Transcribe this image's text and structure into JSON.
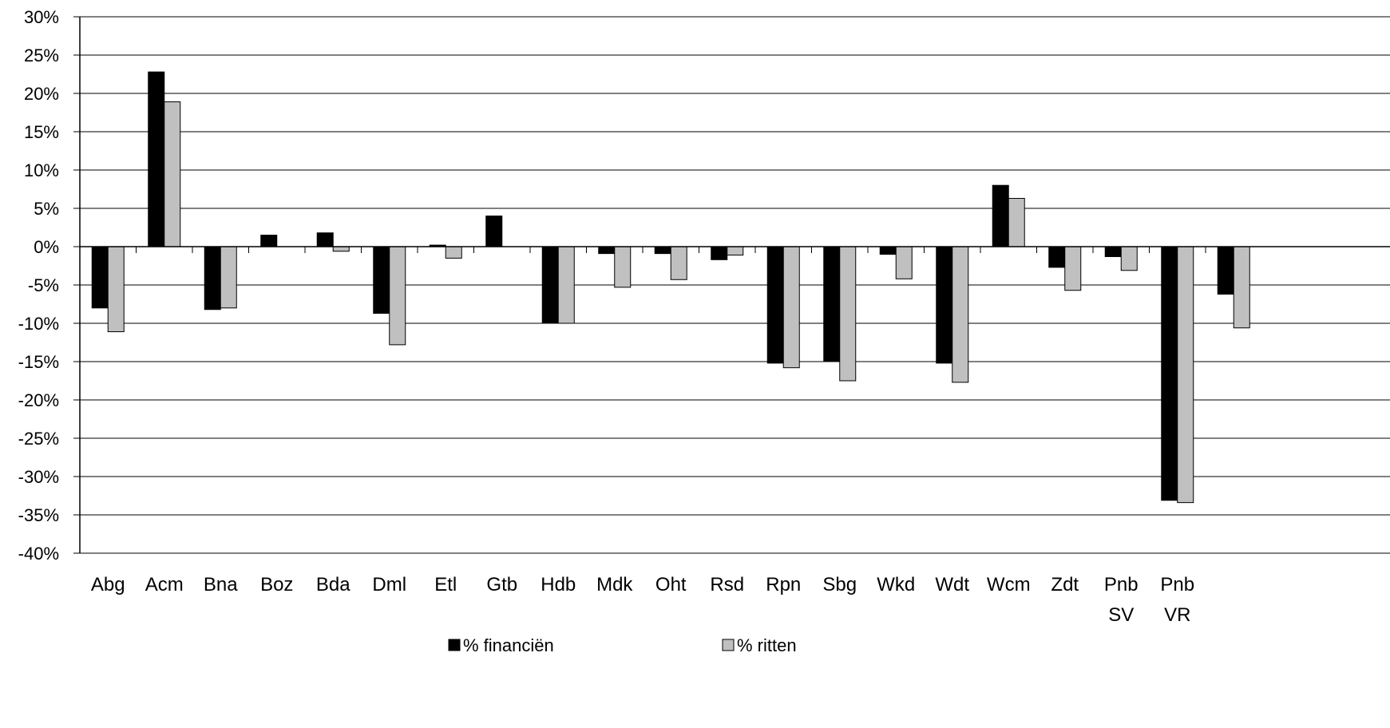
{
  "chart_data": {
    "type": "bar",
    "title": "",
    "xlabel": "",
    "ylabel": "",
    "ylim": [
      -0.4,
      0.3
    ],
    "yticks": [
      0.3,
      0.25,
      0.2,
      0.15,
      0.1,
      0.05,
      0.0,
      -0.05,
      -0.1,
      -0.15,
      -0.2,
      -0.25,
      -0.3,
      -0.35,
      -0.4
    ],
    "ytick_labels": [
      "30%",
      "25%",
      "20%",
      "15%",
      "10%",
      "5%",
      "0%",
      "-5%",
      "-10%",
      "-15%",
      "-20%",
      "-25%",
      "-30%",
      "-35%",
      "-40%"
    ],
    "grid": true,
    "legend_position": "bottom",
    "categories": [
      [
        "Abg"
      ],
      [
        "Acm"
      ],
      [
        "Bna"
      ],
      [
        "Boz"
      ],
      [
        "Bda"
      ],
      [
        "Dml"
      ],
      [
        "Etl"
      ],
      [
        "Gtb"
      ],
      [
        "Hdb"
      ],
      [
        "Mdk"
      ],
      [
        "Oht"
      ],
      [
        "Rsd"
      ],
      [
        "Rpn"
      ],
      [
        "Sbg"
      ],
      [
        "Wkd"
      ],
      [
        "Wdt"
      ],
      [
        "Wcm"
      ],
      [
        "Zdt"
      ],
      [
        "Pnb",
        "SV"
      ],
      [
        "Pnb",
        "VR"
      ],
      [
        "",
        ""
      ]
    ],
    "series": [
      {
        "name": "% financiën",
        "color": "#000000",
        "values": [
          -0.08,
          0.228,
          -0.082,
          0.015,
          0.018,
          -0.087,
          0.002,
          0.04,
          -0.1,
          -0.009,
          -0.009,
          -0.017,
          -0.152,
          -0.15,
          -0.01,
          -0.152,
          0.08,
          -0.027,
          -0.013,
          -0.331,
          -0.062
        ]
      },
      {
        "name": "% ritten",
        "color": "#c0c0c0",
        "values": [
          -0.111,
          0.189,
          -0.08,
          0.0,
          -0.006,
          -0.128,
          -0.015,
          0.0,
          -0.1,
          -0.053,
          -0.043,
          -0.011,
          -0.158,
          -0.175,
          -0.042,
          -0.177,
          0.063,
          -0.057,
          -0.031,
          -0.334,
          -0.106
        ]
      }
    ]
  }
}
